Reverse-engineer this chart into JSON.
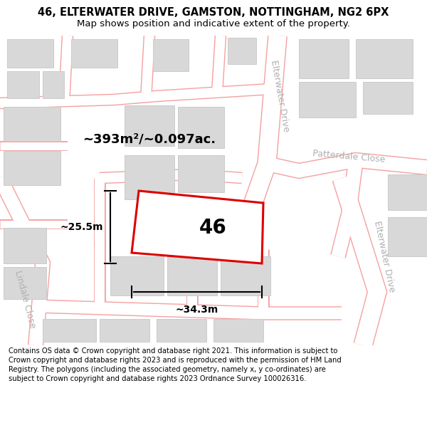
{
  "title": "46, ELTERWATER DRIVE, GAMSTON, NOTTINGHAM, NG2 6PX",
  "subtitle": "Map shows position and indicative extent of the property.",
  "footer": "Contains OS data © Crown copyright and database right 2021. This information is subject to Crown copyright and database rights 2023 and is reproduced with the permission of HM Land Registry. The polygons (including the associated geometry, namely x, y co-ordinates) are subject to Crown copyright and database rights 2023 Ordnance Survey 100026316.",
  "bg_color": "#ffffff",
  "map_bg": "#ffffff",
  "road_color": "#f5a0a0",
  "road_lw": 1.0,
  "building_fill": "#d8d8d8",
  "building_edge": "#c8c8c8",
  "plot_outline_color": "#dd0000",
  "street_label_color": "#b0b0b0",
  "area_text": "~393m²/~0.097ac.",
  "number_label": "46",
  "width_label": "~34.3m",
  "height_label": "~25.5m",
  "title_fontsize": 10.5,
  "subtitle_fontsize": 9.5,
  "footer_fontsize": 7.2,
  "area_fontsize": 13,
  "number_fontsize": 20,
  "dim_fontsize": 10,
  "street_fontsize": 9
}
